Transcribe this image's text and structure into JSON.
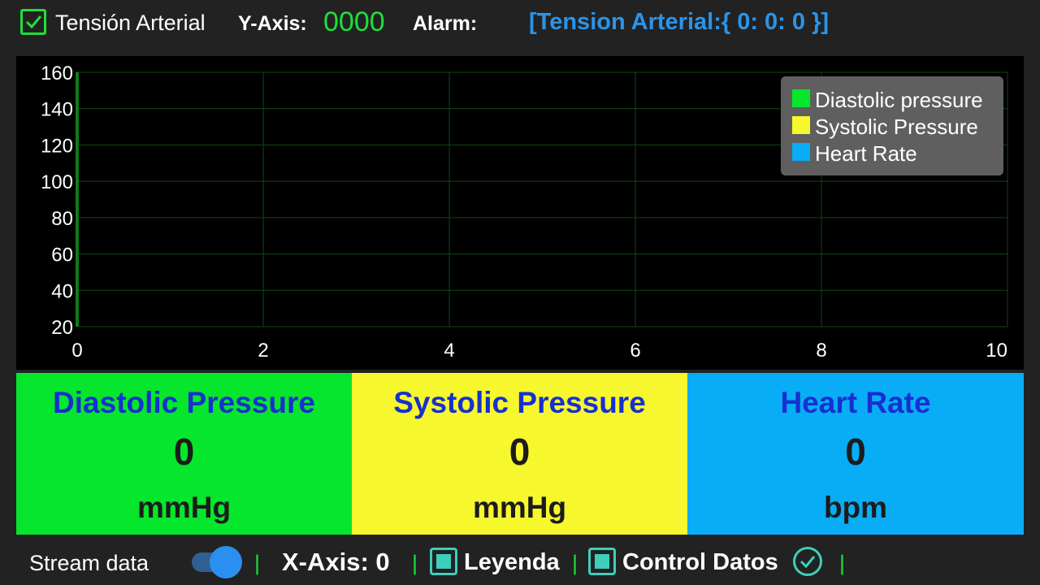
{
  "header": {
    "tension_checkbox_checked": true,
    "tension_label": "Tensión Arterial",
    "yaxis_label": "Y-Axis:",
    "yaxis_value": "0000",
    "alarm_label": "Alarm:",
    "alarm_value": "[Tension Arterial:{ 0: 0: 0 }]"
  },
  "chart_data": {
    "type": "line",
    "x_ticks": [
      "0",
      "2",
      "4",
      "6",
      "8",
      "10"
    ],
    "y_ticks": [
      "160",
      "140",
      "120",
      "100",
      "80",
      "60",
      "40",
      "20"
    ],
    "xlim": [
      0,
      10
    ],
    "ylim": [
      20,
      160
    ],
    "grid": true,
    "legend_position": "top-right",
    "series": [
      {
        "name": "Diastolic pressure",
        "color": "#06e62c",
        "values": []
      },
      {
        "name": "Systolic Pressure",
        "color": "#f7f72d",
        "values": []
      },
      {
        "name": "Heart Rate",
        "color": "#08adf6",
        "values": []
      }
    ]
  },
  "panels": [
    {
      "title": "Diastolic Pressure",
      "value": "0",
      "unit": "mmHg",
      "color": "#06e62c"
    },
    {
      "title": "Systolic Pressure",
      "value": "0",
      "unit": "mmHg",
      "color": "#f7f72d"
    },
    {
      "title": "Heart Rate",
      "value": "0",
      "unit": "bpm",
      "color": "#08adf6"
    }
  ],
  "footer": {
    "stream_label": "Stream data",
    "stream_enabled": true,
    "separator": "|",
    "xaxis_label": "X-Axis: 0",
    "leyenda_label": "Leyenda",
    "leyenda_checked": true,
    "control_label": "Control Datos",
    "control_checked": true,
    "confirm_icon": "check-circle-icon"
  },
  "colors": {
    "accent_green": "#1ee03a",
    "alarm_blue": "#2b94e8",
    "checkbox_teal": "#3ecfbb",
    "toggle_blue": "#2b8ff0"
  }
}
